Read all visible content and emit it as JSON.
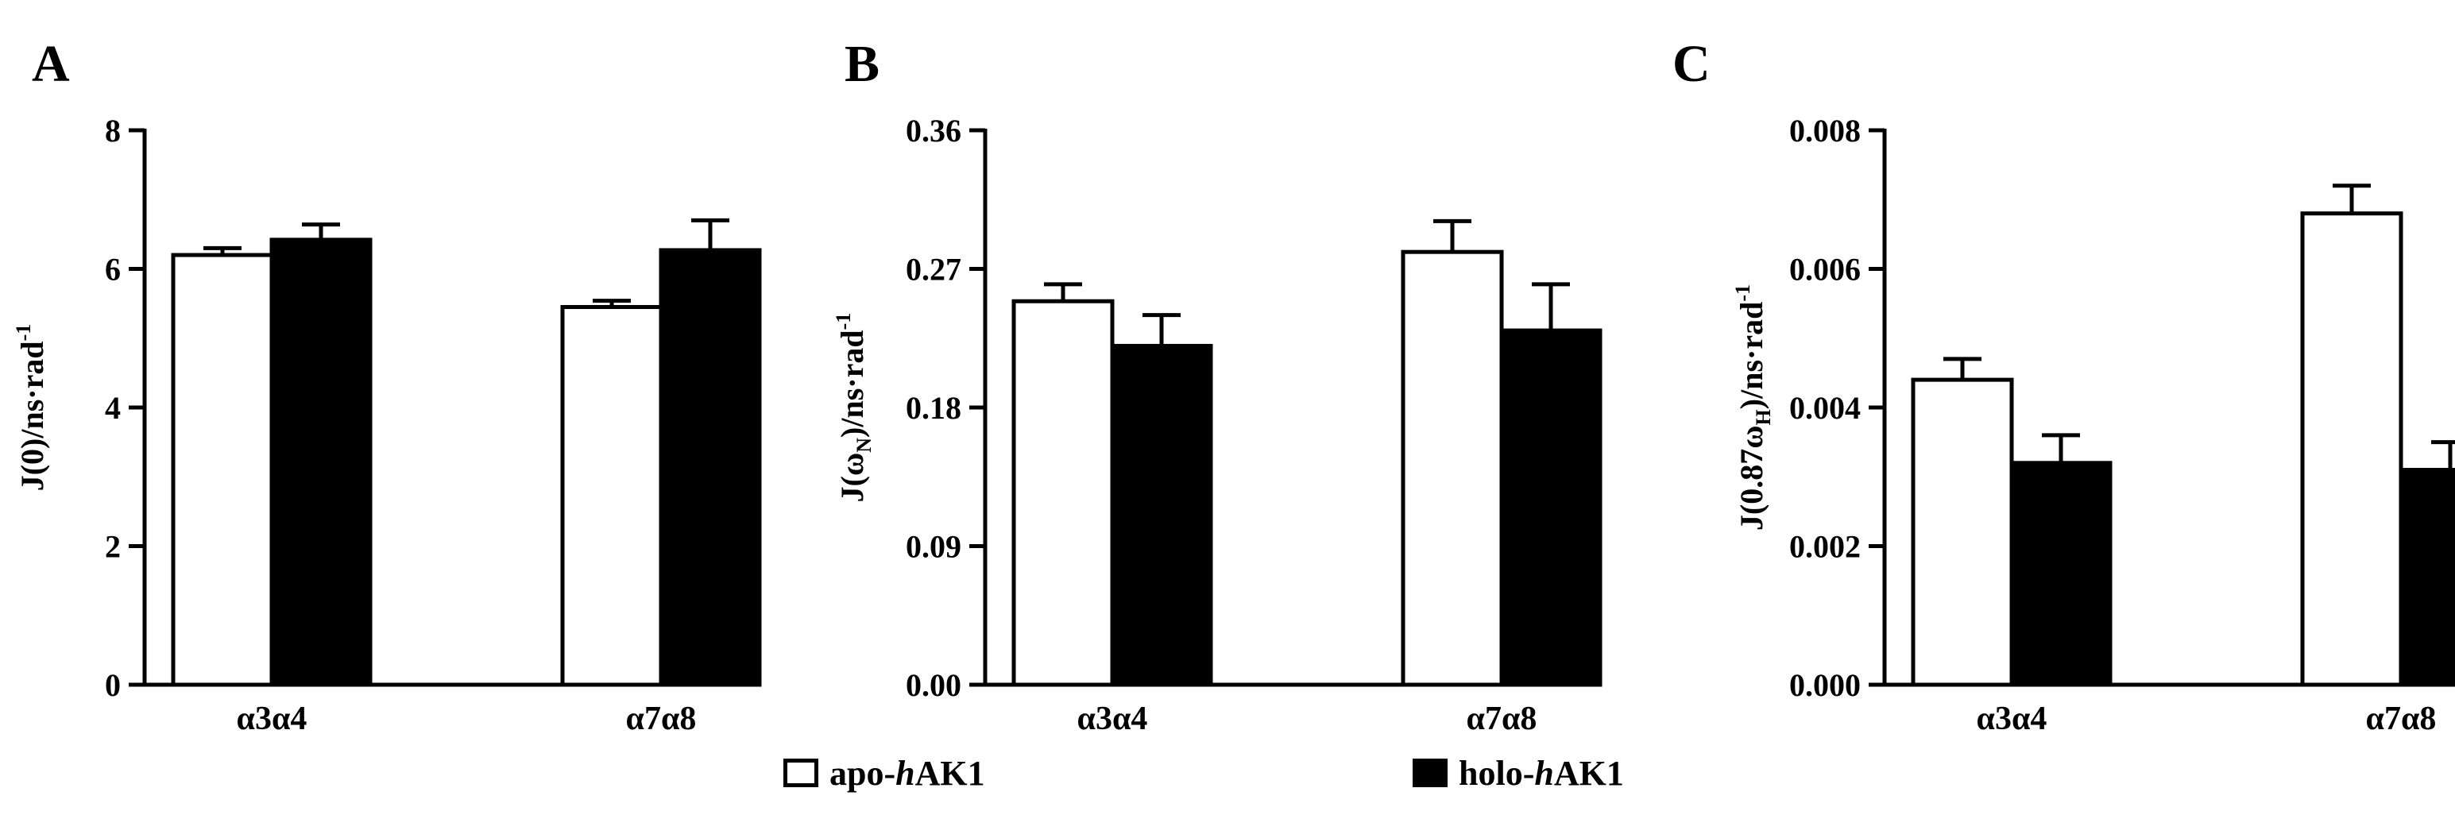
{
  "chart_data": [
    {
      "panel": "A",
      "type": "bar",
      "categories": [
        "α3α4",
        "α7α8"
      ],
      "ylabel": {
        "main": "J(0)/ns·rad",
        "sub": "",
        "tail": "",
        "sup": "-1"
      },
      "ylim": [
        0,
        8
      ],
      "yticks": [
        "0",
        "2",
        "4",
        "6",
        "8"
      ],
      "series": [
        {
          "values": [
            6.2,
            5.45
          ],
          "errors": [
            0.1,
            0.09
          ]
        },
        {
          "values": [
            6.42,
            6.27
          ],
          "errors": [
            0.22,
            0.43
          ]
        }
      ]
    },
    {
      "panel": "B",
      "type": "bar",
      "categories": [
        "α3α4",
        "α7α8"
      ],
      "ylabel": {
        "main": "J(ω",
        "sub": "N",
        "tail": ")/ns·rad",
        "sup": "-1"
      },
      "ylim": [
        0,
        0.36
      ],
      "yticks": [
        "0.00",
        "0.09",
        "0.18",
        "0.27",
        "0.36"
      ],
      "series": [
        {
          "values": [
            0.249,
            0.281
          ],
          "errors": [
            0.011,
            0.02
          ]
        },
        {
          "values": [
            0.22,
            0.23
          ],
          "errors": [
            0.02,
            0.03
          ]
        }
      ]
    },
    {
      "panel": "C",
      "type": "bar",
      "categories": [
        "α3α4",
        "α7α8"
      ],
      "ylabel": {
        "main": "J(0.87ω",
        "sub": "H",
        "tail": ")/ns·rad",
        "sup": "-1"
      },
      "ylim": [
        0,
        0.008
      ],
      "yticks": [
        "0.000",
        "0.002",
        "0.004",
        "0.006",
        "0.008"
      ],
      "series": [
        {
          "values": [
            0.0044,
            0.0068
          ],
          "errors": [
            0.0003,
            0.0004
          ]
        },
        {
          "values": [
            0.0032,
            0.0031
          ],
          "errors": [
            0.0004,
            0.0004
          ]
        }
      ]
    }
  ],
  "legend": {
    "apo": {
      "prefix": "apo-",
      "italic": "h",
      "suffix": "AK1"
    },
    "holo": {
      "prefix": "holo-",
      "italic": "h",
      "suffix": "AK1"
    }
  },
  "colors": {
    "apo": "#ffffff",
    "holo": "#000000",
    "stroke": "#000000"
  }
}
